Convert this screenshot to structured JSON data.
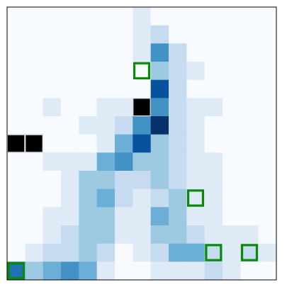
{
  "board": {
    "rows": 15,
    "cols": 15,
    "frame_color": "#000000",
    "highlight_color": "#0a8a0a",
    "blocked_color": "#000000",
    "palette": [
      "#f7fbff",
      "#deebf7",
      "#c6dbef",
      "#9ecae1",
      "#6baed6",
      "#4292c6",
      "#2171b5",
      "#08519c",
      "#08306b"
    ],
    "cells": [
      [
        0,
        0,
        0,
        0,
        0,
        0,
        0,
        1,
        0,
        0,
        0,
        0,
        0,
        0,
        0
      ],
      [
        0,
        0,
        0,
        0,
        0,
        0,
        0,
        1,
        2,
        0,
        0,
        0,
        0,
        0,
        0
      ],
      [
        0,
        0,
        0,
        0,
        0,
        0,
        0,
        1,
        5,
        2,
        0,
        0,
        0,
        0,
        0
      ],
      [
        0,
        0,
        0,
        0,
        0,
        0,
        0,
        0,
        3,
        2,
        1,
        0,
        0,
        0,
        0
      ],
      [
        0,
        0,
        0,
        0,
        0,
        0,
        0,
        0,
        7,
        2,
        0,
        0,
        0,
        0,
        0
      ],
      [
        0,
        0,
        1,
        0,
        0,
        1,
        1,
        -1,
        5,
        2,
        1,
        1,
        0,
        0,
        0
      ],
      [
        0,
        0,
        0,
        0,
        1,
        1,
        2,
        5,
        8,
        2,
        1,
        0,
        0,
        0,
        0
      ],
      [
        -1,
        -1,
        0,
        0,
        0,
        1,
        4,
        7,
        3,
        2,
        1,
        0,
        0,
        0,
        0
      ],
      [
        0,
        0,
        1,
        1,
        1,
        4,
        5,
        3,
        3,
        2,
        1,
        1,
        0,
        0,
        0
      ],
      [
        0,
        0,
        0,
        1,
        3,
        3,
        2,
        2,
        3,
        2,
        1,
        1,
        0,
        0,
        0
      ],
      [
        0,
        0,
        0,
        1,
        3,
        4,
        2,
        1,
        2,
        3,
        1,
        1,
        0,
        0,
        0
      ],
      [
        0,
        0,
        1,
        1,
        3,
        3,
        1,
        1,
        4,
        3,
        1,
        1,
        0,
        0,
        0
      ],
      [
        0,
        0,
        1,
        2,
        3,
        3,
        1,
        1,
        3,
        3,
        2,
        1,
        1,
        1,
        0
      ],
      [
        0,
        1,
        2,
        2,
        3,
        2,
        0,
        1,
        2,
        4,
        4,
        2,
        1,
        2,
        1
      ],
      [
        6,
        3,
        4,
        5,
        4,
        1,
        0,
        0,
        1,
        1,
        1,
        2,
        1,
        0,
        0
      ]
    ],
    "highlights": [
      {
        "row": 3,
        "col": 7
      },
      {
        "row": 10,
        "col": 10
      },
      {
        "row": 13,
        "col": 11
      },
      {
        "row": 13,
        "col": 13
      },
      {
        "row": 14,
        "col": 0
      }
    ]
  }
}
